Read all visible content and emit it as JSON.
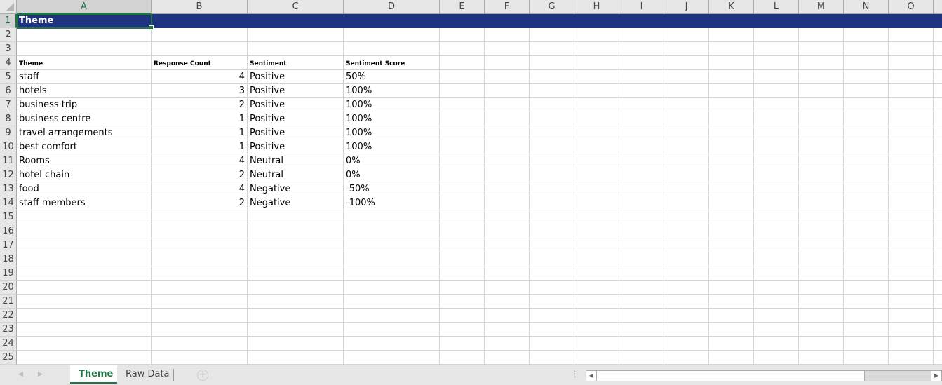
{
  "columns": [
    "A",
    "B",
    "C",
    "D",
    "E",
    "F",
    "G",
    "H",
    "I",
    "J",
    "K",
    "L",
    "M",
    "N",
    "O"
  ],
  "selected_cell": "A1",
  "accent_color": "#217346",
  "banner_color": "#1f3480",
  "title": "Theme",
  "headers": [
    "Theme",
    "Response Count",
    "Sentiment",
    "Sentiment Score"
  ],
  "rows": [
    [
      "staff",
      4,
      "Positive",
      "50%"
    ],
    [
      "hotels",
      3,
      "Positive",
      "100%"
    ],
    [
      "business trip",
      2,
      "Positive",
      "100%"
    ],
    [
      "business centre",
      1,
      "Positive",
      "100%"
    ],
    [
      "travel arrangements",
      1,
      "Positive",
      "100%"
    ],
    [
      "best comfort",
      1,
      "Positive",
      "100%"
    ],
    [
      "Rooms",
      4,
      "Neutral",
      "0%"
    ],
    [
      "hotel chain",
      2,
      "Neutral",
      "0%"
    ],
    [
      "food",
      4,
      "Negative",
      "-50%"
    ],
    [
      "staff members",
      2,
      "Negative",
      "-100%"
    ]
  ],
  "row_count": 25,
  "sheets": [
    {
      "label": "Theme",
      "active": true
    },
    {
      "label": "Raw Data",
      "active": false
    }
  ],
  "icons": {
    "prev": "chevron-left-icon",
    "next": "chevron-right-icon",
    "add": "plus-circle-icon"
  }
}
